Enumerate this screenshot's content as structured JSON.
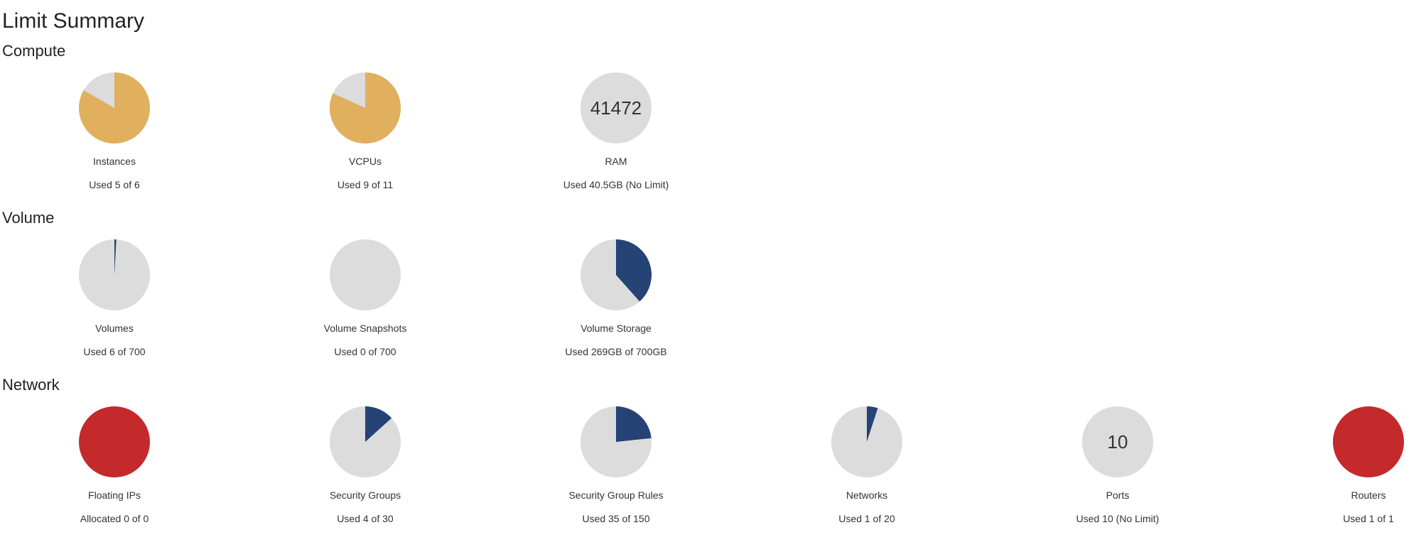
{
  "title": "Limit Summary",
  "colors": {
    "unused": "#dcdcdc",
    "compute": "#e0b05e",
    "volume": "#254374",
    "network": "#254374",
    "full": "#c4292c"
  },
  "sections": [
    {
      "id": "compute",
      "title": "Compute",
      "color": "compute",
      "items": [
        {
          "name": "instances",
          "label": "Instances",
          "usage": "Used 5 of 6",
          "fraction": 0.8333,
          "center_text": ""
        },
        {
          "name": "vcpus",
          "label": "VCPUs",
          "usage": "Used 9 of 11",
          "fraction": 0.8182,
          "center_text": ""
        },
        {
          "name": "ram",
          "label": "RAM",
          "usage": "Used 40.5GB (No Limit)",
          "fraction": 0,
          "center_text": "41472"
        }
      ]
    },
    {
      "id": "volume",
      "title": "Volume",
      "color": "volume",
      "items": [
        {
          "name": "volumes",
          "label": "Volumes",
          "usage": "Used 6 of 700",
          "fraction": 0.0086,
          "center_text": ""
        },
        {
          "name": "volume-snapshots",
          "label": "Volume Snapshots",
          "usage": "Used 0 of 700",
          "fraction": 0,
          "center_text": ""
        },
        {
          "name": "volume-storage",
          "label": "Volume Storage",
          "usage": "Used 269GB of 700GB",
          "fraction": 0.3843,
          "center_text": ""
        }
      ]
    },
    {
      "id": "network",
      "title": "Network",
      "color": "network",
      "items": [
        {
          "name": "floating-ips",
          "label": "Floating IPs",
          "usage": "Allocated 0 of 0",
          "fraction": 1,
          "center_text": "",
          "full": true
        },
        {
          "name": "security-groups",
          "label": "Security Groups",
          "usage": "Used 4 of 30",
          "fraction": 0.1333,
          "center_text": ""
        },
        {
          "name": "security-group-rules",
          "label": "Security Group Rules",
          "usage": "Used 35 of 150",
          "fraction": 0.2333,
          "center_text": ""
        },
        {
          "name": "networks",
          "label": "Networks",
          "usage": "Used 1 of 20",
          "fraction": 0.05,
          "center_text": ""
        },
        {
          "name": "ports",
          "label": "Ports",
          "usage": "Used 10 (No Limit)",
          "fraction": 0,
          "center_text": "10"
        },
        {
          "name": "routers",
          "label": "Routers",
          "usage": "Used 1 of 1",
          "fraction": 1,
          "center_text": "",
          "full": true
        }
      ]
    }
  ]
}
